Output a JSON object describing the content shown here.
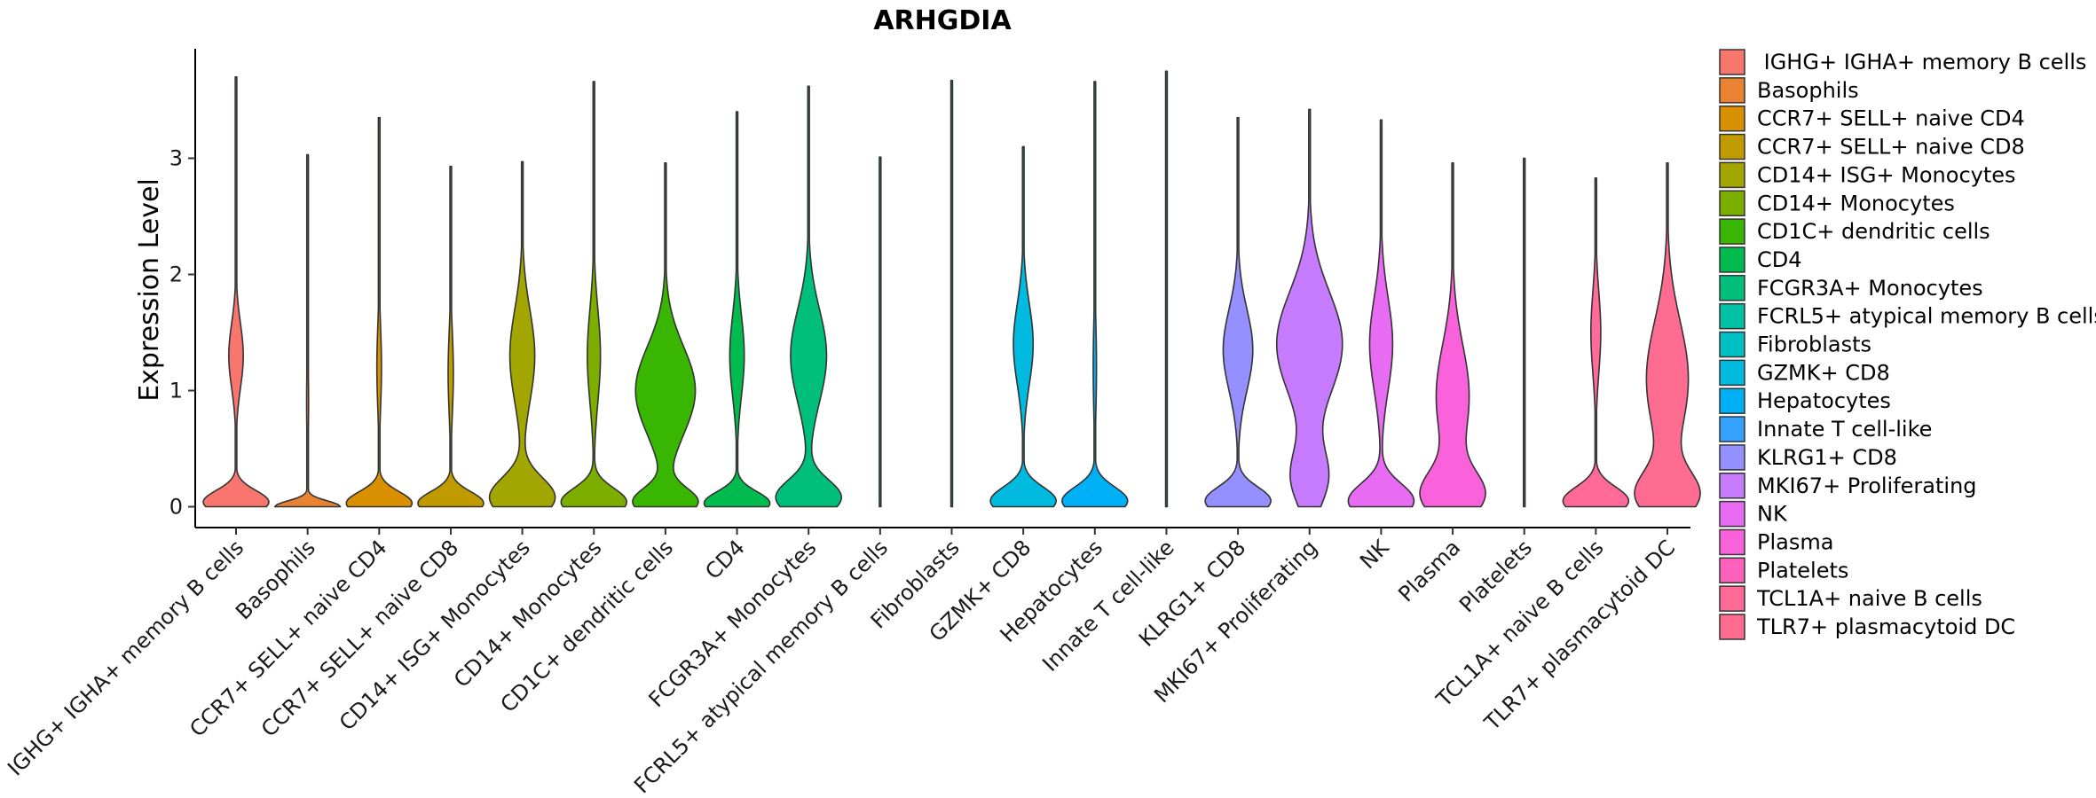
{
  "chart_data": {
    "type": "violin",
    "title": "ARHGDIA",
    "ylabel": "Expression Level",
    "xlabel": "",
    "ylim": [
      -0.2,
      3.93
    ],
    "yticks": [
      0,
      1,
      2,
      3
    ],
    "categories": [
      "IGHG+ IGHA+ memory B cells",
      "Basophils",
      "CCR7+ SELL+ naive CD4",
      "CCR7+ SELL+ naive CD8",
      "CD14+ ISG+ Monocytes",
      "CD14+ Monocytes",
      "CD1C+ dendritic cells",
      "CD4",
      "FCGR3A+ Monocytes",
      "FCRL5+ atypical memory B cells",
      "Fibroblasts",
      "GZMK+ CD8",
      "Hepatocytes",
      "Innate T cell-like",
      "KLRG1+ CD8",
      "MKI67+ Proliferating",
      "NK",
      "Plasma",
      "Platelets",
      "TCL1A+ naive B cells",
      "TLR7+ plasmacytoid DC"
    ],
    "legend_labels": [
      " IGHG+ IGHA+ memory B cells",
      "Basophils",
      "CCR7+ SELL+ naive CD4",
      "CCR7+ SELL+ naive CD8",
      "CD14+ ISG+ Monocytes",
      "CD14+ Monocytes",
      "CD1C+ dendritic cells",
      "CD4",
      "FCGR3A+ Monocytes",
      "FCRL5+ atypical memory B cells",
      "Fibroblasts",
      "GZMK+ CD8",
      "Hepatocytes",
      "Innate T cell-like",
      "KLRG1+ CD8",
      "MKI67+ Proliferating",
      "NK",
      "Plasma",
      "Platelets",
      "TCL1A+ naive B cells",
      "TLR7+ plasmacytoid DC"
    ],
    "colors": [
      "#F8766D",
      "#EA8331",
      "#D89000",
      "#C09B00",
      "#A3A500",
      "#7CAE00",
      "#39B600",
      "#00BB4E",
      "#00BF7D",
      "#00C1A3",
      "#00BFC4",
      "#00BAE0",
      "#00B0F6",
      "#35A2FF",
      "#9590FF",
      "#C77CFF",
      "#E76BF3",
      "#FA62DB",
      "#FF62BC",
      "#FF6A98",
      "#FF6C91"
    ],
    "max_values": [
      3.7,
      3.03,
      3.35,
      2.93,
      2.97,
      3.66,
      2.96,
      3.4,
      3.62,
      3.01,
      3.67,
      3.1,
      3.66,
      3.75,
      3.35,
      3.42,
      3.33,
      2.96,
      3.0,
      2.83,
      2.96
    ],
    "violins": [
      {
        "scale": 1.0,
        "components": [
          {
            "mu": 0.04,
            "sigma": 0.1,
            "w": 1.0
          },
          {
            "mu": 1.3,
            "sigma": 0.28,
            "w": 0.22
          }
        ]
      },
      {
        "scale": 1.0,
        "components": [
          {
            "mu": 0.0,
            "sigma": 0.05,
            "w": 1.0
          },
          {
            "mu": 0.9,
            "sigma": 0.35,
            "w": 0.03
          }
        ]
      },
      {
        "scale": 1.0,
        "components": [
          {
            "mu": 0.03,
            "sigma": 0.1,
            "w": 1.0
          },
          {
            "mu": 1.2,
            "sigma": 0.35,
            "w": 0.07
          }
        ]
      },
      {
        "scale": 1.0,
        "components": [
          {
            "mu": 0.03,
            "sigma": 0.1,
            "w": 1.0
          },
          {
            "mu": 1.15,
            "sigma": 0.35,
            "w": 0.08
          }
        ]
      },
      {
        "scale": 1.0,
        "components": [
          {
            "mu": 0.08,
            "sigma": 0.17,
            "w": 1.0
          },
          {
            "mu": 1.3,
            "sigma": 0.4,
            "w": 0.38
          }
        ]
      },
      {
        "scale": 1.0,
        "components": [
          {
            "mu": 0.04,
            "sigma": 0.12,
            "w": 1.0
          },
          {
            "mu": 1.3,
            "sigma": 0.4,
            "w": 0.2
          }
        ]
      },
      {
        "scale": 1.0,
        "components": [
          {
            "mu": 0.04,
            "sigma": 0.12,
            "w": 0.9
          },
          {
            "mu": 1.0,
            "sigma": 0.38,
            "w": 0.85
          }
        ]
      },
      {
        "scale": 1.0,
        "components": [
          {
            "mu": 0.03,
            "sigma": 0.1,
            "w": 1.0
          },
          {
            "mu": 1.3,
            "sigma": 0.35,
            "w": 0.22
          }
        ]
      },
      {
        "scale": 1.0,
        "components": [
          {
            "mu": 0.08,
            "sigma": 0.15,
            "w": 1.0
          },
          {
            "mu": 1.3,
            "sigma": 0.4,
            "w": 0.55
          }
        ]
      },
      {
        "scale": 1.0,
        "components": [
          {
            "mu": 0.0,
            "sigma": 0.03,
            "w": 0.0
          }
        ]
      },
      {
        "scale": 1.0,
        "components": [
          {
            "mu": 0.0,
            "sigma": 0.03,
            "w": 0.0
          }
        ]
      },
      {
        "scale": 1.0,
        "components": [
          {
            "mu": 0.05,
            "sigma": 0.12,
            "w": 1.0
          },
          {
            "mu": 1.4,
            "sigma": 0.35,
            "w": 0.3
          }
        ]
      },
      {
        "scale": 1.0,
        "components": [
          {
            "mu": 0.05,
            "sigma": 0.12,
            "w": 1.0
          },
          {
            "mu": 1.2,
            "sigma": 0.4,
            "w": 0.05
          }
        ]
      },
      {
        "scale": 1.0,
        "components": [
          {
            "mu": 0.0,
            "sigma": 0.03,
            "w": 0.0
          }
        ]
      },
      {
        "scale": 1.0,
        "components": [
          {
            "mu": 0.05,
            "sigma": 0.12,
            "w": 1.0
          },
          {
            "mu": 1.35,
            "sigma": 0.35,
            "w": 0.45
          }
        ]
      },
      {
        "scale": 1.0,
        "components": [
          {
            "mu": 0.25,
            "sigma": 0.25,
            "w": 0.55
          },
          {
            "mu": 1.4,
            "sigma": 0.45,
            "w": 1.0
          }
        ]
      },
      {
        "scale": 1.0,
        "components": [
          {
            "mu": 0.05,
            "sigma": 0.15,
            "w": 1.0
          },
          {
            "mu": 1.4,
            "sigma": 0.4,
            "w": 0.35
          }
        ]
      },
      {
        "scale": 1.0,
        "components": [
          {
            "mu": 0.1,
            "sigma": 0.2,
            "w": 1.0
          },
          {
            "mu": 0.95,
            "sigma": 0.45,
            "w": 0.55
          }
        ]
      },
      {
        "scale": 1.0,
        "components": [
          {
            "mu": 0.0,
            "sigma": 0.03,
            "w": 0.0
          }
        ]
      },
      {
        "scale": 1.0,
        "components": [
          {
            "mu": 0.05,
            "sigma": 0.12,
            "w": 1.0
          },
          {
            "mu": 1.5,
            "sigma": 0.35,
            "w": 0.15
          }
        ]
      },
      {
        "scale": 1.0,
        "components": [
          {
            "mu": 0.1,
            "sigma": 0.2,
            "w": 1.0
          },
          {
            "mu": 1.1,
            "sigma": 0.5,
            "w": 0.7
          }
        ]
      }
    ]
  }
}
